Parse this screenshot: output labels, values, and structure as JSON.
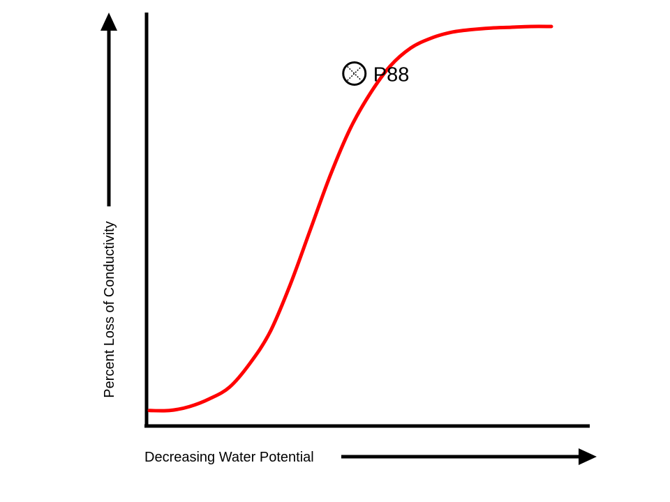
{
  "chart_data": {
    "type": "line",
    "title": "",
    "xlabel": "Decreasing Water Potential",
    "ylabel": "Percent Loss of Conductivity",
    "xlim": [
      0,
      100
    ],
    "ylim": [
      0,
      100
    ],
    "grid": false,
    "ticks": false,
    "series": [
      {
        "color": "#ff0000",
        "x": [
          0,
          5,
          10,
          15,
          20,
          25,
          30,
          35,
          40,
          45,
          50,
          55,
          60,
          65,
          70,
          75,
          80,
          85,
          90,
          95,
          100
        ],
        "y": [
          2,
          2,
          3,
          5,
          8,
          14,
          22,
          34,
          48,
          62,
          74,
          83,
          90,
          94.5,
          97,
          98.5,
          99.2,
          99.6,
          99.8,
          100,
          100
        ]
      }
    ],
    "annotations": [
      {
        "label": "P88",
        "x": 51,
        "y": 88,
        "marker": "circle-cross"
      }
    ]
  }
}
